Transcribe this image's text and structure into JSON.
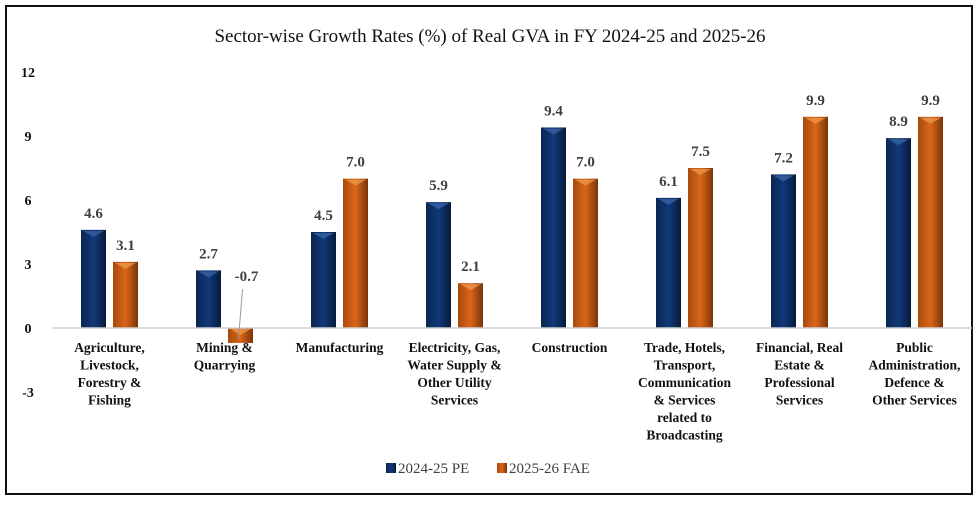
{
  "colors": {
    "series1": "#0d3166",
    "series1_light": "#3a66a8",
    "series2": "#c55a11",
    "series2_light": "#ef9a4e",
    "axis_line": "#d0d0d0",
    "leader_line": "#9a9a9a"
  },
  "chart_data": {
    "type": "bar",
    "title": "Sector-wise Growth Rates (%) of Real GVA in FY 2024-25 and 2025-26",
    "xlabel": "",
    "ylabel": "",
    "ylim": [
      -3,
      12
    ],
    "yticks": [
      12,
      9,
      6,
      3,
      0,
      -3
    ],
    "ytick_labels": [
      "12",
      "9",
      "6",
      "3",
      "0",
      "-3"
    ],
    "grid": false,
    "legend_position": "bottom",
    "categories": [
      [
        "Agriculture,",
        "Livestock,",
        "Forestry &",
        "Fishing"
      ],
      [
        "Mining &",
        "Quarrying"
      ],
      [
        "Manufacturing"
      ],
      [
        "Electricity, Gas,",
        "Water Supply &",
        "Other Utility",
        "Services"
      ],
      [
        "Construction"
      ],
      [
        "Trade, Hotels,",
        "Transport,",
        "Communication",
        "& Services",
        "related to",
        "Broadcasting"
      ],
      [
        "Financial, Real",
        "Estate &",
        "Professional",
        "Services"
      ],
      [
        "Public",
        "Administration,",
        "Defence &",
        "Other Services"
      ]
    ],
    "series": [
      {
        "name": "2024-25 PE",
        "values": [
          4.6,
          2.7,
          4.5,
          5.9,
          9.4,
          6.1,
          7.2,
          8.9
        ],
        "labels": [
          "4.6",
          "2.7",
          "4.5",
          "5.9",
          "9.4",
          "6.1",
          "7.2",
          "8.9"
        ]
      },
      {
        "name": "2025-26 FAE",
        "values": [
          3.1,
          -0.7,
          7.0,
          2.1,
          7.0,
          7.5,
          9.9,
          9.9
        ],
        "labels": [
          "3.1",
          "-0.7",
          "7.0",
          "2.1",
          "7.0",
          "7.5",
          "9.9",
          "9.9"
        ]
      }
    ]
  }
}
